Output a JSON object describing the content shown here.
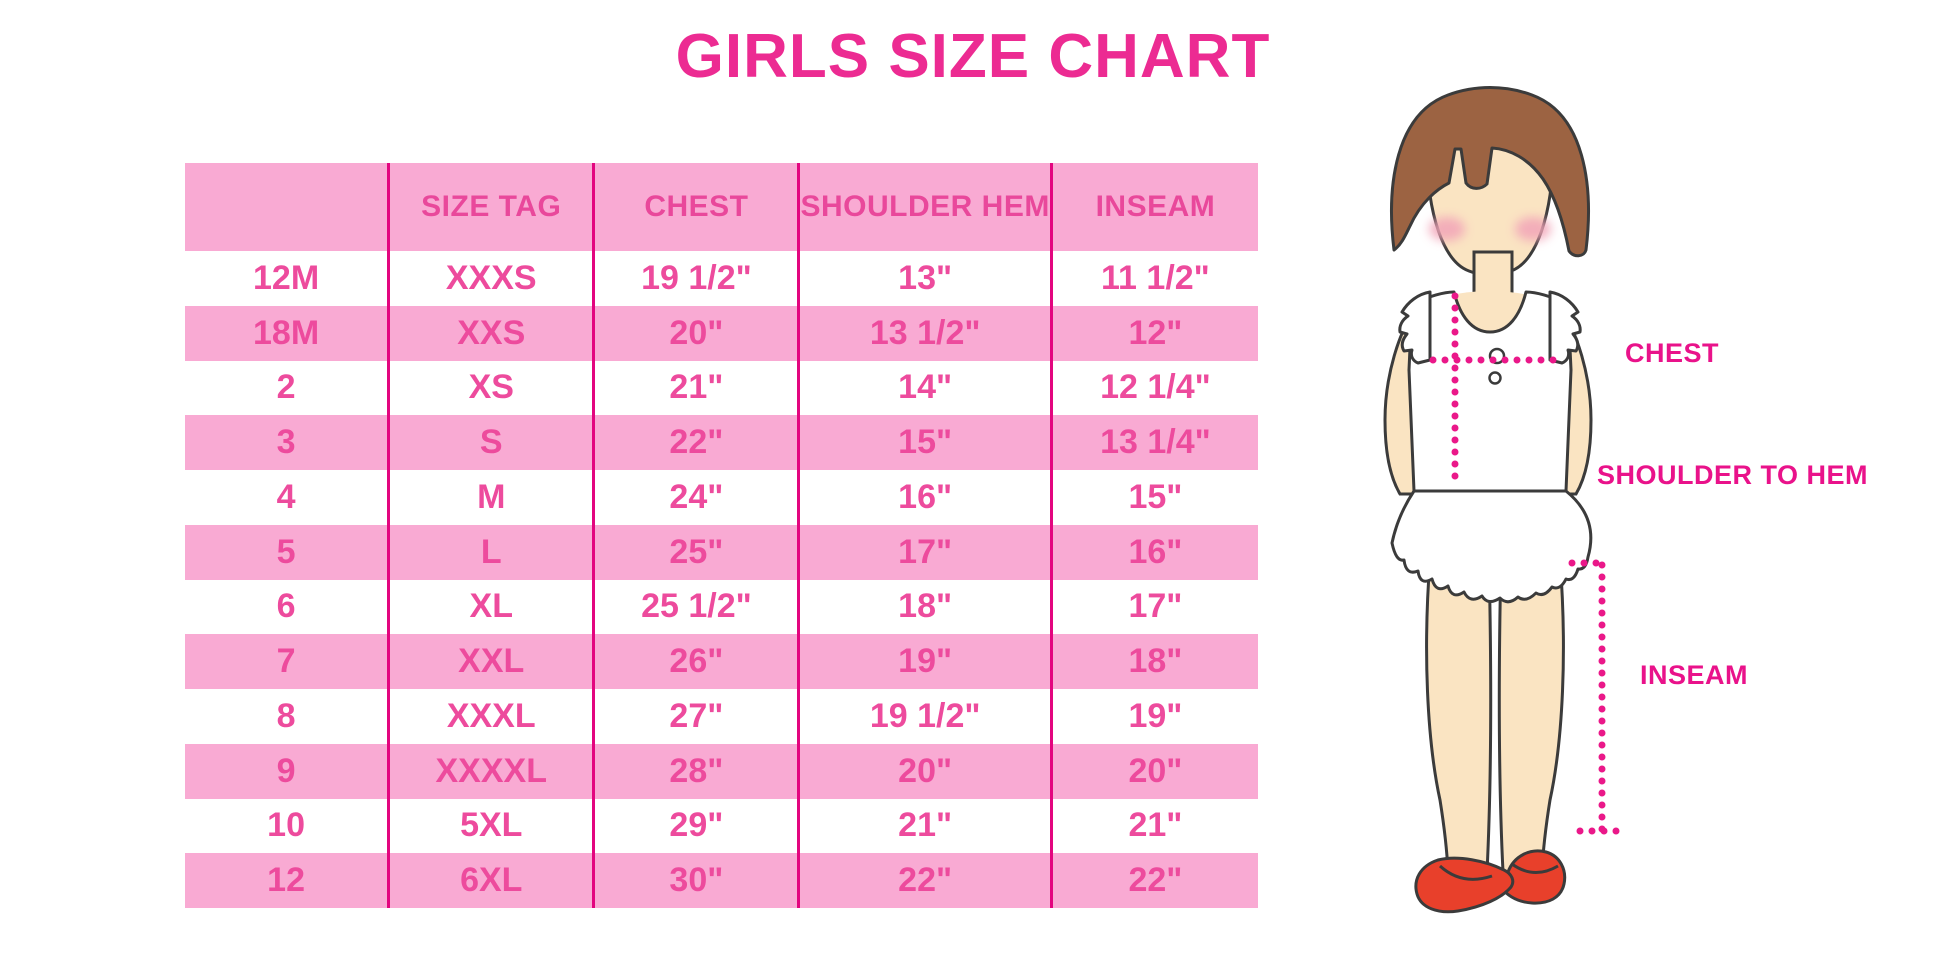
{
  "title": "GIRLS SIZE CHART",
  "chart_data": {
    "type": "table",
    "title": "GIRLS SIZE CHART",
    "columns": [
      "",
      "SIZE TAG",
      "CHEST",
      "SHOULDER HEM",
      "INSEAM"
    ],
    "rows": [
      [
        "12M",
        "XXXS",
        "19 1/2\"",
        "13\"",
        "11 1/2\""
      ],
      [
        "18M",
        "XXS",
        "20\"",
        "13 1/2\"",
        "12\""
      ],
      [
        "2",
        "XS",
        "21\"",
        "14\"",
        "12 1/4\""
      ],
      [
        "3",
        "S",
        "22\"",
        "15\"",
        "13 1/4\""
      ],
      [
        "4",
        "M",
        "24\"",
        "16\"",
        "15\""
      ],
      [
        "5",
        "L",
        "25\"",
        "17\"",
        "16\""
      ],
      [
        "6",
        "XL",
        "25 1/2\"",
        "18\"",
        "17\""
      ],
      [
        "7",
        "XXL",
        "26\"",
        "19\"",
        "18\""
      ],
      [
        "8",
        "XXXL",
        "27\"",
        "19 1/2\"",
        "19\""
      ],
      [
        "9",
        "XXXXL",
        "28\"",
        "20\"",
        "20\""
      ],
      [
        "10",
        "5XL",
        "29\"",
        "21\"",
        "21\""
      ],
      [
        "12",
        "6XL",
        "30\"",
        "22\"",
        "22\""
      ]
    ],
    "layout": {
      "striping": "alternating white and pink rows, pink header row",
      "grid": "magenta vertical column dividers only"
    }
  },
  "figure": {
    "description": "cartoon girl with brown bob hair, white ruffled top and skirt, red shoes, dotted measurement guides",
    "labels": {
      "chest": "CHEST",
      "shoulder_to_hem": "SHOULDER TO HEM",
      "inseam": "INSEAM"
    }
  },
  "colors": {
    "title_pink": "#EC2B92",
    "row_pink": "#F9AAD3",
    "divider_magenta": "#E3057F",
    "cell_text_pink": "#ED4B9D",
    "label_magenta": "#E9128A",
    "dotted_line": "#EA1889",
    "hair_brown": "#9C6342",
    "skin": "#FAE4C2",
    "blush": "#F2A4B8",
    "shoe_red": "#E8402B",
    "outline": "#3B3B3B"
  }
}
